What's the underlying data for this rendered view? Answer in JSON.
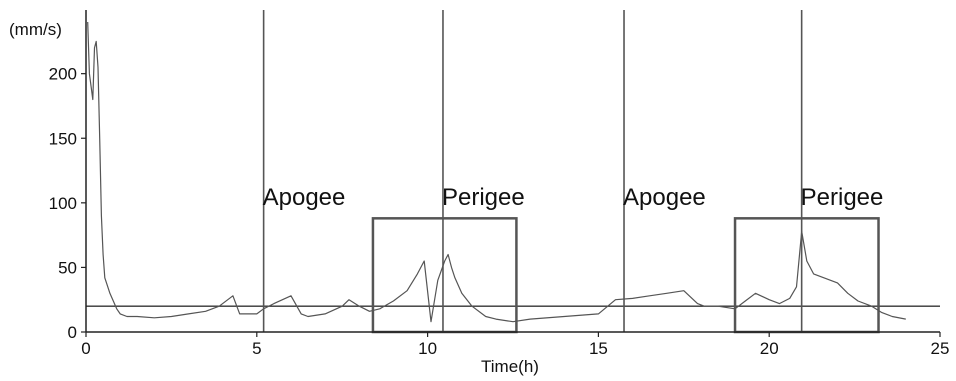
{
  "chart_data": {
    "type": "line",
    "ylabel": "(mm/s)",
    "xlabel": "Time(h)",
    "xlim": [
      0,
      25
    ],
    "ylim": [
      0,
      240
    ],
    "xticks": [
      "0",
      "5",
      "10",
      "15",
      "20",
      "25"
    ],
    "yticks": [
      "0",
      "50",
      "100",
      "150",
      "200"
    ],
    "grid": false,
    "reference_line": {
      "y": 20
    },
    "event_lines": [
      {
        "x": 5.2,
        "label": "Apogee"
      },
      {
        "x": 10.45,
        "label": "Perigee"
      },
      {
        "x": 15.75,
        "label": "Apogee"
      },
      {
        "x": 20.95,
        "label": "Perigee"
      }
    ],
    "highlight_boxes": [
      {
        "x0": 8.4,
        "x1": 12.6,
        "y0": 0,
        "y1": 88
      },
      {
        "x0": 19.0,
        "x1": 23.2,
        "y0": 0,
        "y1": 88
      }
    ],
    "series": [
      {
        "x": [
          0.05,
          0.1,
          0.15,
          0.2,
          0.25,
          0.3,
          0.35,
          0.4,
          0.45,
          0.5,
          0.55,
          0.6,
          0.7,
          0.8,
          0.9,
          1.0,
          1.2,
          1.5,
          2.0,
          2.5,
          3.0,
          3.5,
          3.9,
          4.3,
          4.5,
          5.0,
          5.2,
          5.5,
          6.0,
          6.3,
          6.5,
          7.0,
          7.5,
          7.7,
          8.0,
          8.3,
          8.6,
          9.0,
          9.4,
          9.7,
          9.9,
          10.1,
          10.3,
          10.5,
          10.6,
          10.7,
          10.8,
          11.0,
          11.3,
          11.7,
          12.0,
          12.5,
          13.0,
          14.0,
          15.0,
          15.5,
          16.0,
          16.5,
          17.0,
          17.5,
          17.9,
          18.1,
          18.5,
          19.0,
          19.3,
          19.6,
          20.0,
          20.3,
          20.6,
          20.8,
          20.95,
          21.1,
          21.3,
          21.6,
          22.0,
          22.3,
          22.6,
          23.0,
          23.3,
          23.6,
          24.0
        ],
        "values": [
          240,
          200,
          190,
          180,
          220,
          225,
          205,
          150,
          90,
          60,
          42,
          38,
          30,
          24,
          18,
          14,
          12,
          12,
          11,
          12,
          14,
          16,
          20,
          28,
          14,
          14,
          18,
          22,
          28,
          14,
          12,
          14,
          20,
          25,
          20,
          16,
          18,
          24,
          32,
          45,
          55,
          8,
          40,
          55,
          60,
          50,
          42,
          30,
          20,
          12,
          10,
          8,
          10,
          12,
          14,
          25,
          26,
          28,
          30,
          32,
          22,
          20,
          20,
          18,
          24,
          30,
          25,
          22,
          26,
          35,
          78,
          55,
          45,
          42,
          38,
          30,
          24,
          20,
          15,
          12,
          10
        ]
      }
    ]
  }
}
